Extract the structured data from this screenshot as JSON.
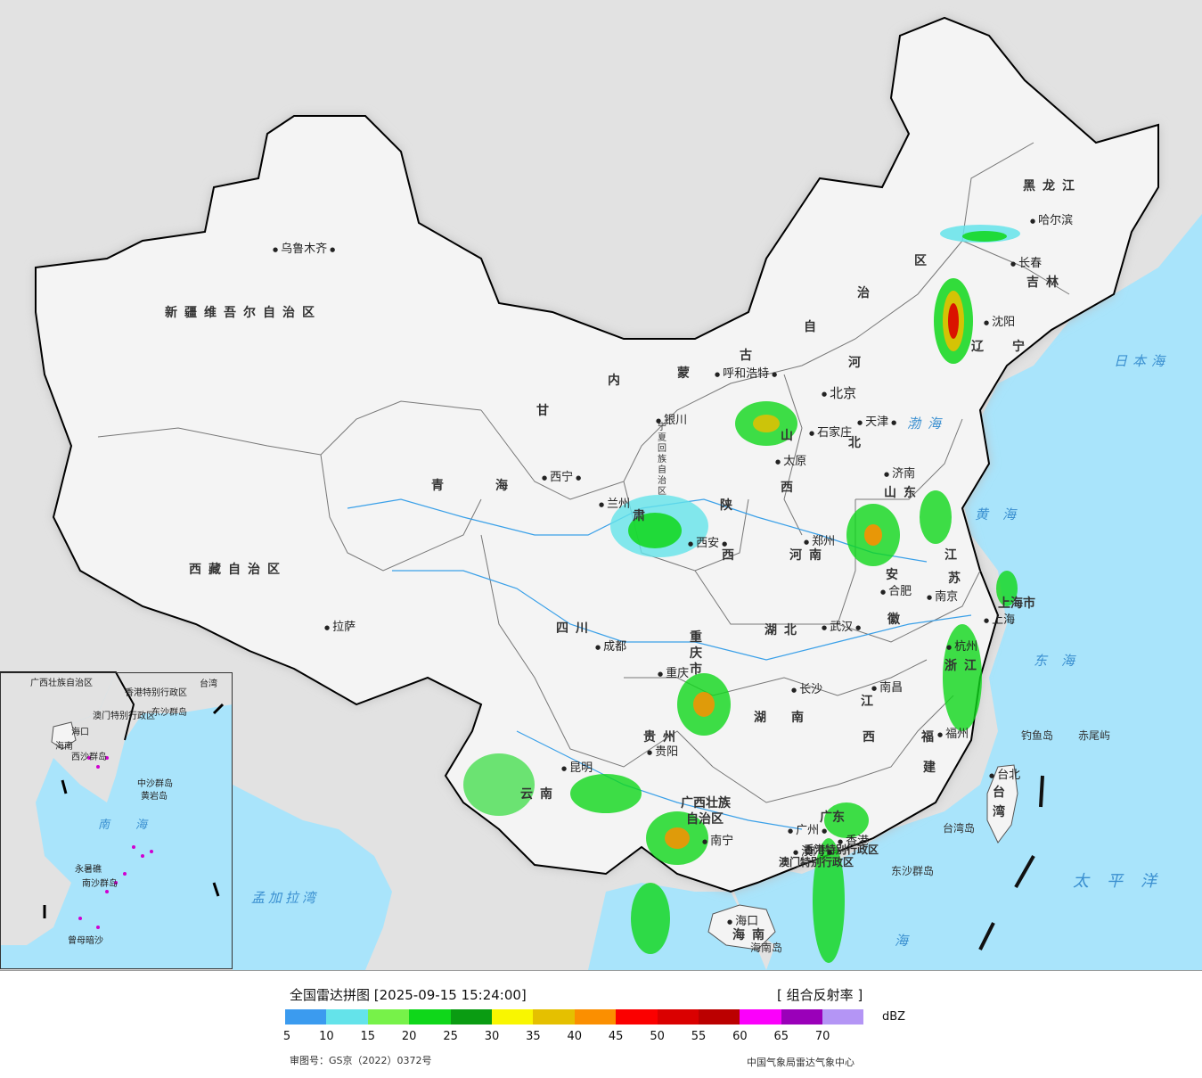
{
  "legend": {
    "title": "全国雷达拼图 [2025-09-15 15:24:00]",
    "product": "[ 组合反射率 ]",
    "unit": "dBZ",
    "ticks": [
      "5",
      "10",
      "15",
      "20",
      "25",
      "30",
      "35",
      "40",
      "45",
      "50",
      "55",
      "60",
      "65",
      "70"
    ],
    "colors": [
      "#3b9bef",
      "#64e3ea",
      "#77f249",
      "#0fd71a",
      "#0a9c12",
      "#f9f600",
      "#e5c000",
      "#fb8f00",
      "#fb0000",
      "#da0000",
      "#bb0000",
      "#fb00fb",
      "#9a00b9",
      "#b495f5"
    ],
    "approval": "审图号：GS京（2022）0372号",
    "agency": "中国气象局雷达气象中心"
  },
  "provinces": {
    "xinjiang": "新疆维吾尔自治区",
    "xizang": "西藏自治区",
    "qinghai": [
      "青",
      "海"
    ],
    "gansu": [
      "甘",
      "肃"
    ],
    "neimenggu": [
      "内",
      "蒙",
      "古",
      "自",
      "治",
      "区"
    ],
    "ningxia": "宁夏回族自治区",
    "shaanxi": [
      "陕",
      "西"
    ],
    "shanxi": [
      "山",
      "西"
    ],
    "hebei": [
      "河",
      "北"
    ],
    "heilongjiang": "黑龙江",
    "jilin": "吉林",
    "liaoning": [
      "辽",
      "宁"
    ],
    "shandong": "山东",
    "henan": "河南",
    "jiangsu": [
      "江",
      "苏"
    ],
    "anhui": [
      "安",
      "徽"
    ],
    "hubei": "湖北",
    "sichuan": "四川",
    "chongqing": "重庆市",
    "hunan": [
      "湖",
      "南"
    ],
    "jiangxi": [
      "江",
      "西"
    ],
    "zhejiang": "浙江",
    "fujian": [
      "福",
      "建"
    ],
    "guizhou": "贵州",
    "yunnan": "云南",
    "guangxi": [
      "广西壮族",
      "自治区"
    ],
    "guangdong": "广东",
    "hainan": "海南",
    "taiwan": [
      "台",
      "湾"
    ],
    "shanghai": "上海市",
    "beijing": "北京",
    "tianjin": "天津",
    "hk": "香港特别行政区",
    "macau": "澳门特别行政区"
  },
  "cities": {
    "urumqi": "乌鲁木齐",
    "lhasa": "拉萨",
    "xining": "西宁",
    "lanzhou": "兰州",
    "yinchuan": "银川",
    "hohhot": "呼和浩特",
    "taiyuan": "太原",
    "shijiazhuang": "石家庄",
    "beijing": "北京",
    "tianjin": "天津",
    "jinan": "济南",
    "zhengzhou": "郑州",
    "xian": "西安",
    "chengdu": "成都",
    "chongqing": "重庆",
    "wuhan": "武汉",
    "hefei": "合肥",
    "nanjing": "南京",
    "shanghai": "上海",
    "hangzhou": "杭州",
    "nanchang": "南昌",
    "changsha": "长沙",
    "guiyang": "贵阳",
    "kunming": "昆明",
    "nanning": "南宁",
    "guangzhou": "广州",
    "hongkong": "香港",
    "macau": "澳门",
    "haikou": "海口",
    "fuzhou": "福州",
    "taibei": "台北",
    "harbin": "哈尔滨",
    "changchun": "长春",
    "shenyang": "沈阳"
  },
  "seas": {
    "japan": "日本海",
    "bohai": "渤海",
    "yellow": "黄海",
    "east": "东海",
    "pacific": "太平洋",
    "south": "海",
    "bengal": "孟加拉湾"
  },
  "islands": {
    "diaoyu": "钓鱼岛",
    "chiwei": "赤尾屿",
    "dongsha": "东沙群岛",
    "hainan_island": "海南岛",
    "taiwan_island": "台湾岛"
  },
  "inset": {
    "sea": [
      "南",
      "海"
    ],
    "xisha": "西沙群岛",
    "zhongsha": "中沙群岛",
    "huangyan": "黄岩岛",
    "nansha": "南沙群岛",
    "zengmu": "曾母暗沙",
    "yongshu": "永暑礁",
    "dongsha": "东沙群岛",
    "guangxi": "广西壮族自治区",
    "hk": "香港特别行政区",
    "macau": "澳门特别行政区",
    "haikou": "海口",
    "hainan": "海南",
    "taiwan": "台湾"
  }
}
